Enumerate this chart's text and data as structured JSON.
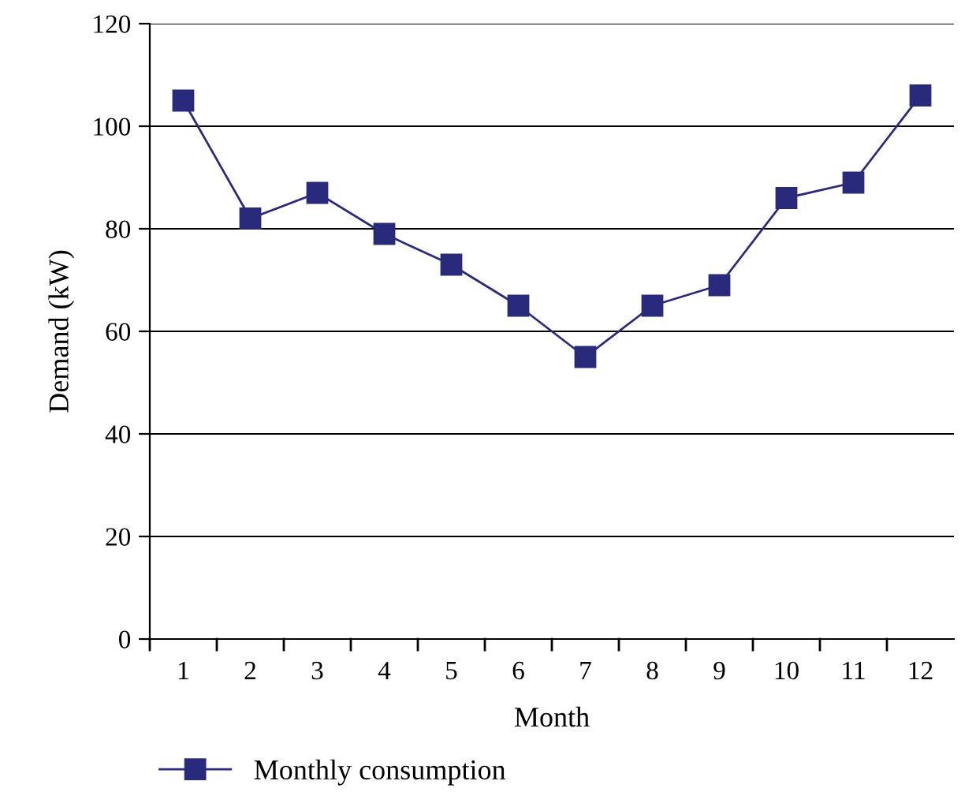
{
  "chart_data": {
    "type": "line",
    "xlabel": "Month",
    "ylabel": "Demand (kW)",
    "categories": [
      "1",
      "2",
      "3",
      "4",
      "5",
      "6",
      "7",
      "8",
      "9",
      "10",
      "11",
      "12"
    ],
    "series": [
      {
        "name": "Monthly consumption",
        "color": "#2a2a7c",
        "values": [
          105,
          82,
          87,
          79,
          73,
          65,
          55,
          65,
          69,
          86,
          89,
          106
        ]
      }
    ],
    "ylim": [
      0,
      120
    ],
    "yticks": [
      0,
      20,
      40,
      60,
      80,
      100,
      120
    ],
    "grid": "y",
    "legend": "bottom",
    "marker": "square",
    "line_style": "solid"
  }
}
